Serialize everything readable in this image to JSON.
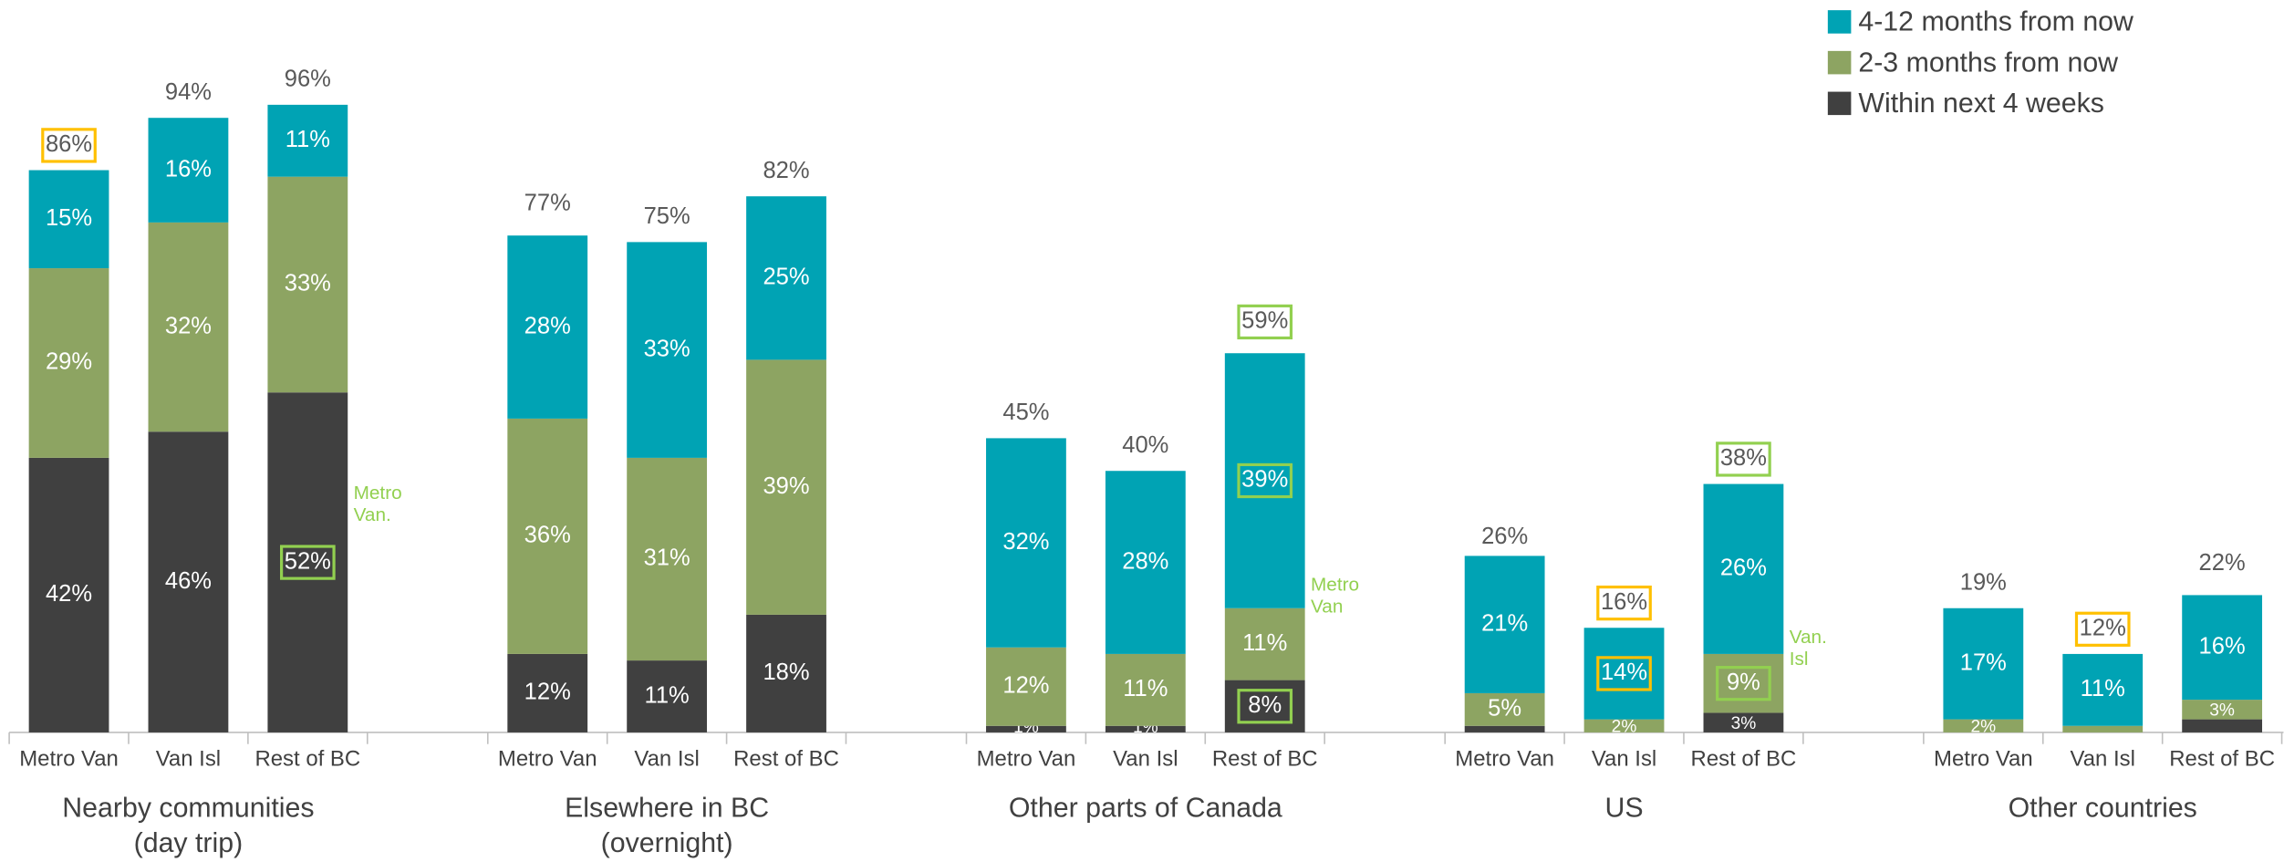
{
  "chart_data": {
    "type": "grouped_stacked_bar",
    "groups": [
      {
        "name": [
          "Nearby communities",
          "(day trip)"
        ],
        "categories": [
          "Metro Van",
          "Van Isl",
          "Rest of BC"
        ]
      },
      {
        "name": [
          "Elsewhere in BC",
          "(overnight)"
        ],
        "categories": [
          "Metro Van",
          "Van Isl",
          "Rest of BC"
        ]
      },
      {
        "name": [
          "Other parts of Canada"
        ],
        "categories": [
          "Metro Van",
          "Van Isl",
          "Rest of BC"
        ]
      },
      {
        "name": [
          "US"
        ],
        "categories": [
          "Metro Van",
          "Van Isl",
          "Rest of BC"
        ]
      },
      {
        "name": [
          "Other countries"
        ],
        "categories": [
          "Metro Van",
          "Van Isl",
          "Rest of BC"
        ]
      }
    ],
    "series": [
      {
        "name": "Within next 4 weeks",
        "color": "#404040",
        "values": [
          42,
          46,
          52,
          12,
          11,
          18,
          1,
          1,
          8,
          1,
          0,
          3,
          0,
          0,
          2
        ],
        "value_labels": [
          "42%",
          "46%",
          "52%",
          "12%",
          "11%",
          "18%",
          "1%",
          "1%",
          "8%",
          null,
          null,
          "3%",
          null,
          null,
          null
        ],
        "boxes": [
          null,
          null,
          "#92d050",
          null,
          null,
          null,
          null,
          null,
          "#92d050",
          null,
          null,
          null,
          null,
          null,
          null
        ]
      },
      {
        "name": "2-3 months from now",
        "color": "#8da462",
        "values": [
          29,
          32,
          33,
          36,
          31,
          39,
          12,
          11,
          11,
          5,
          2,
          9,
          2,
          1,
          3
        ],
        "value_labels": [
          "29%",
          "32%",
          "33%",
          "36%",
          "31%",
          "39%",
          "12%",
          "11%",
          "11%",
          "5%",
          "2%",
          "9%",
          "2%",
          null,
          "3%"
        ],
        "boxes": [
          null,
          null,
          null,
          null,
          null,
          null,
          null,
          null,
          null,
          null,
          null,
          "#92d050",
          null,
          null,
          null
        ]
      },
      {
        "name": "4-12 months from now",
        "color": "#00a3b4",
        "values": [
          15,
          16,
          11,
          28,
          33,
          25,
          32,
          28,
          39,
          21,
          14,
          26,
          17,
          11,
          16
        ],
        "value_labels": [
          "15%",
          "16%",
          "11%",
          "28%",
          "33%",
          "25%",
          "32%",
          "28%",
          "39%",
          "21%",
          "14%",
          "26%",
          "17%",
          "11%",
          "16%"
        ],
        "boxes": [
          null,
          null,
          null,
          null,
          null,
          null,
          null,
          null,
          "#92d050",
          null,
          "#ffc000",
          null,
          null,
          null,
          null
        ]
      }
    ],
    "totals": [
      86,
      94,
      96,
      77,
      75,
      82,
      45,
      40,
      59,
      26,
      16,
      38,
      19,
      12,
      22
    ],
    "total_labels": [
      "86%",
      "94%",
      "96%",
      "77%",
      "75%",
      "82%",
      "45%",
      "40%",
      "59%",
      "26%",
      "16%",
      "38%",
      "19%",
      "12%",
      "22%"
    ],
    "total_boxes": [
      "#ffc000",
      null,
      null,
      null,
      null,
      null,
      null,
      null,
      "#92d050",
      null,
      "#ffc000",
      "#92d050",
      null,
      "#ffc000",
      null
    ],
    "annotations": [
      {
        "lines": [
          "Metro",
          "Van."
        ],
        "bar": 2
      },
      {
        "lines": [
          "Metro",
          "Van"
        ],
        "bar": 8
      },
      {
        "lines": [
          "Van.",
          "Isl"
        ],
        "bar": 11
      }
    ],
    "annotation_color": "#92d050",
    "legend": "top-right"
  }
}
